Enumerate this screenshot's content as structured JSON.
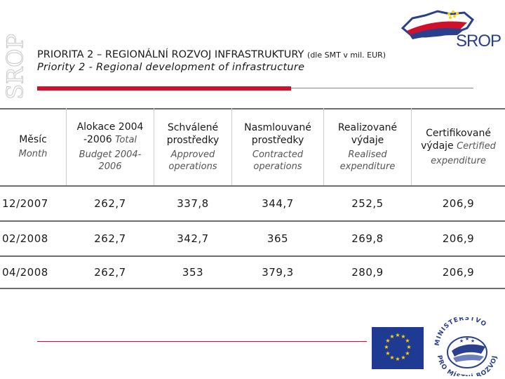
{
  "side_logo_text": "SROP",
  "logo": {
    "text": "SROP"
  },
  "title": {
    "main": "PRIORITA 2 – REGIONÁLNÍ ROZVOJ INFRASTRUKTURY",
    "note": "(dle SMT v mil. EUR)",
    "sub": "Priority 2 - Regional development of infrastructure"
  },
  "table": {
    "headers": [
      {
        "cz": "Měsíc",
        "en": "Month"
      },
      {
        "cz": "Alokace 2004 -2006",
        "cz_inline": "Total",
        "en": "Budget 2004-2006"
      },
      {
        "cz": "Schválené prostředky",
        "en": "Approved operations"
      },
      {
        "cz": "Nasmlouvané prostředky",
        "en": "Contracted operations"
      },
      {
        "cz": "Realizované výdaje",
        "en": "Realised expenditure"
      },
      {
        "cz": "Certifikované výdaje",
        "cz_inline": "Certified",
        "en": "expenditure"
      }
    ],
    "rows": [
      [
        "12/2007",
        "262,7",
        "337,8",
        "344,7",
        "252,5",
        "206,9"
      ],
      [
        "02/2008",
        "262,7",
        "342,7",
        "365",
        "269,8",
        "206,9"
      ],
      [
        "04/2008",
        "262,7",
        "353",
        "379,3",
        "280,9",
        "206,9"
      ]
    ]
  },
  "footer_logo": {
    "top_text": "MINISTERSTVO",
    "bottom_text": "PRO MÍSTNÍ ROZVOJ"
  },
  "colors": {
    "accent_red": "#d0112b",
    "eu_blue": "#1f3a93",
    "eu_star": "#ffd200",
    "logo_blue": "#2b3f8f"
  }
}
